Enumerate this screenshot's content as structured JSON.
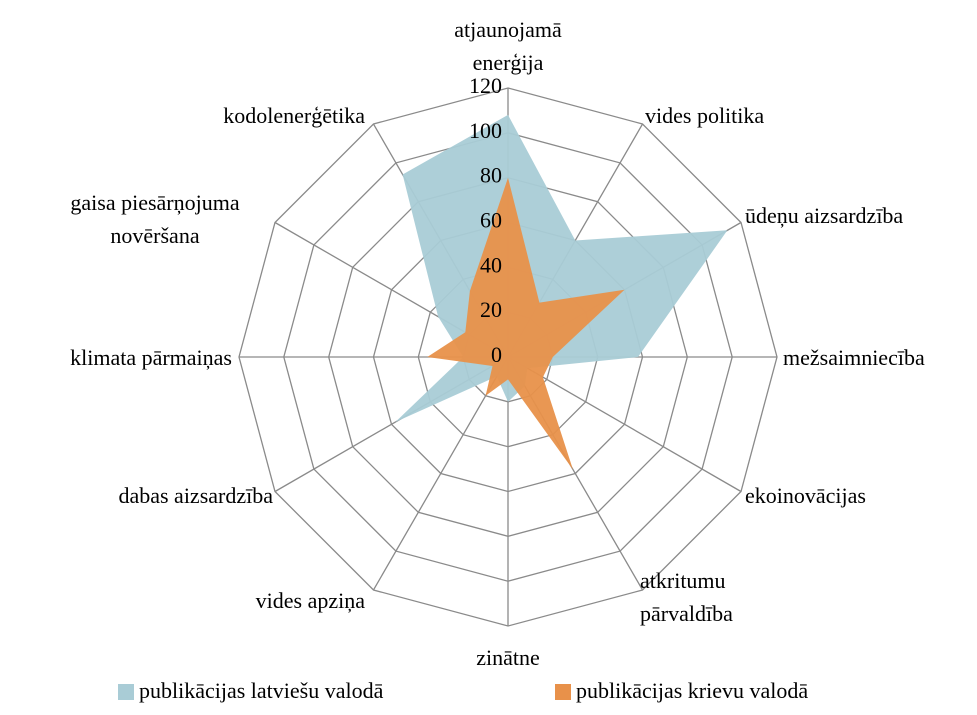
{
  "chart_data": {
    "type": "radar",
    "categories": [
      "atjaunojamā\nenerģija",
      "vides politika",
      "ūdeņu aizsardzība",
      "mežsaimniecība",
      "ekoinovācijas",
      "atkritumu\npārvaldība",
      "zinātne",
      "vides apziņa",
      "dabas aizsardzība",
      "klimata pārmaiņas",
      "gaisa piesārņojuma\nnovēršana",
      "kodolenerģētika"
    ],
    "series": [
      {
        "name": "publikācijas latviešu valodā",
        "color": "#a9ccd6",
        "values": [
          108,
          60,
          113,
          58,
          10,
          15,
          20,
          10,
          58,
          20,
          36,
          94
        ]
      },
      {
        "name": "publikācijas krievu valodā",
        "color": "#e8914a",
        "values": [
          80,
          28,
          60,
          20,
          18,
          58,
          10,
          20,
          8,
          36,
          22,
          34
        ]
      }
    ],
    "ylim": [
      0,
      120
    ],
    "yticks": [
      0,
      20,
      40,
      60,
      80,
      100,
      120
    ],
    "grid": true,
    "legend": "bottom"
  }
}
